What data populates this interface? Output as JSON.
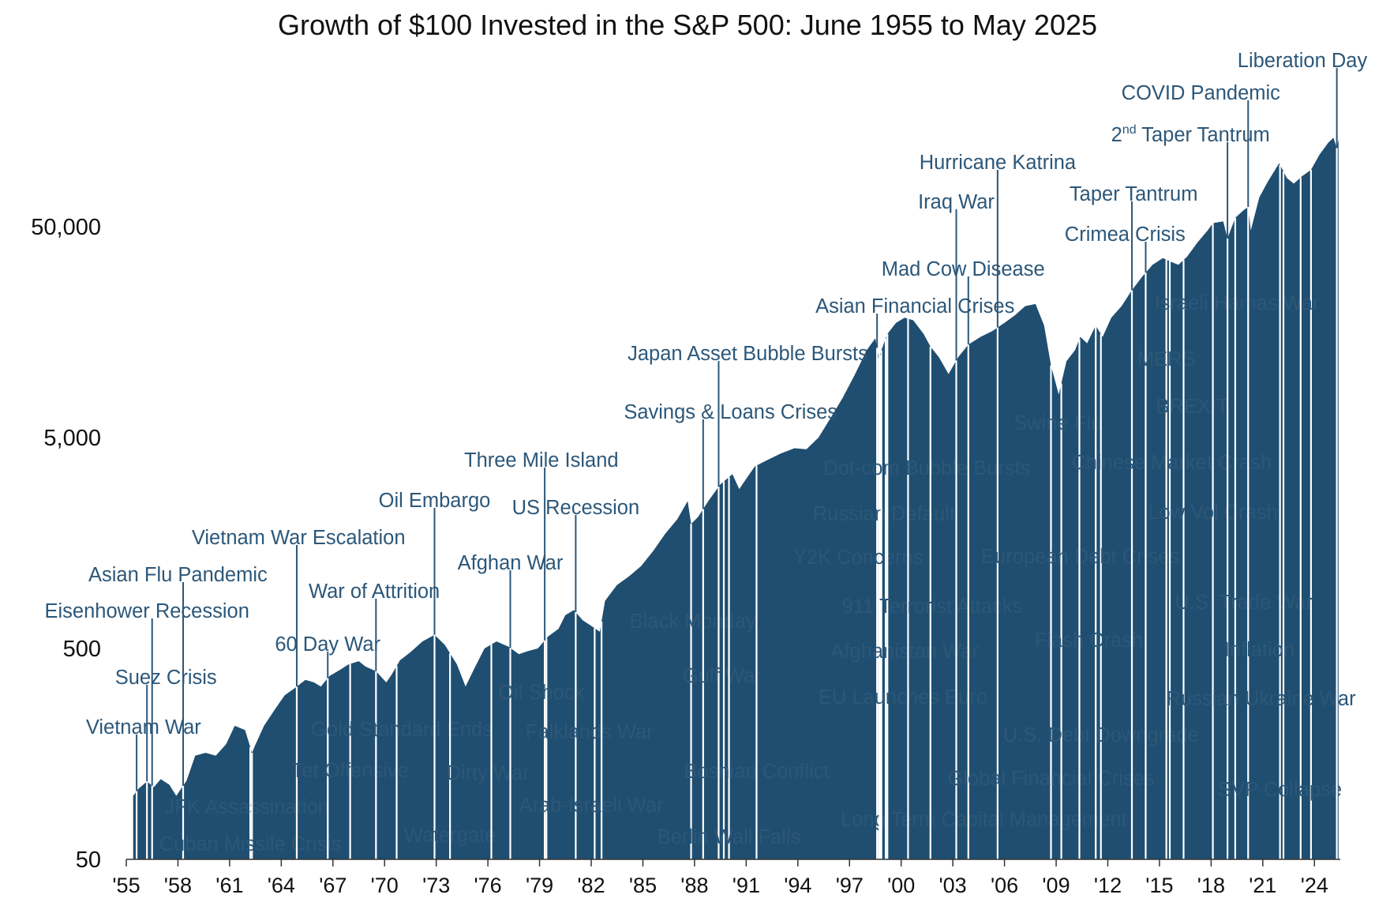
{
  "chart_data": {
    "type": "area",
    "title": "Growth of $100 Invested in the S&P 500: June 1955 to May 2025",
    "xlabel": "",
    "ylabel": "",
    "y_scale": "log",
    "ylim": [
      50,
      160000
    ],
    "xlim": [
      1955.0,
      2025.5
    ],
    "y_ticks": [
      50,
      500,
      5000,
      50000
    ],
    "y_tick_labels": [
      "50",
      "500",
      "5,000",
      "50,000"
    ],
    "x_ticks": [
      1955,
      1958,
      1961,
      1964,
      1967,
      1970,
      1973,
      1976,
      1979,
      1982,
      1985,
      1988,
      1991,
      1994,
      1997,
      2000,
      2003,
      2006,
      2009,
      2012,
      2015,
      2018,
      2021,
      2024
    ],
    "x_tick_labels": [
      "'55",
      "'58",
      "'61",
      "'64",
      "'67",
      "'70",
      "'73",
      "'76",
      "'79",
      "'82",
      "'85",
      "'88",
      "'91",
      "'94",
      "'97",
      "'00",
      "'03",
      "'06",
      "'09",
      "'12",
      "'15",
      "'18",
      "'21",
      "'24"
    ],
    "fill_color": "#1f4e70",
    "label_color": "#2c5779",
    "grid": false,
    "legend": "none",
    "series": [
      {
        "x": [
          1955.4,
          1955.7,
          1956.2,
          1956.6,
          1957.0,
          1957.5,
          1957.9,
          1958.5,
          1959.0,
          1959.6,
          1960.2,
          1960.8,
          1961.3,
          1961.9,
          1962.3,
          1962.5,
          1963.0,
          1963.6,
          1964.2,
          1964.8,
          1965.4,
          1965.9,
          1966.3,
          1966.8,
          1967.4,
          1967.9,
          1968.5,
          1968.9,
          1969.5,
          1970.1,
          1970.4,
          1970.9,
          1971.5,
          1972.2,
          1972.9,
          1973.5,
          1974.2,
          1974.7,
          1975.2,
          1975.8,
          1976.5,
          1977.2,
          1977.8,
          1978.3,
          1978.9,
          1979.5,
          1980.1,
          1980.5,
          1981.0,
          1981.5,
          1982.0,
          1982.5,
          1982.8,
          1983.5,
          1984.2,
          1984.9,
          1985.6,
          1986.3,
          1987.0,
          1987.6,
          1987.8,
          1988.2,
          1988.8,
          1989.5,
          1990.2,
          1990.6,
          1990.9,
          1991.5,
          1992.2,
          1993.0,
          1993.8,
          1994.5,
          1995.2,
          1995.9,
          1996.6,
          1997.3,
          1998.0,
          1998.5,
          1998.7,
          1999.2,
          1999.7,
          2000.2,
          2000.7,
          2001.3,
          2001.7,
          2002.2,
          2002.75,
          2003.3,
          2003.9,
          2004.6,
          2005.3,
          2006.0,
          2006.6,
          2007.2,
          2007.8,
          2008.3,
          2008.7,
          2009.15,
          2009.6,
          2010.1,
          2010.4,
          2010.8,
          2011.3,
          2011.7,
          2012.2,
          2012.8,
          2013.4,
          2014.0,
          2014.6,
          2015.2,
          2015.7,
          2016.1,
          2016.6,
          2017.2,
          2017.8,
          2018.1,
          2018.7,
          2018.95,
          2019.4,
          2019.9,
          2020.15,
          2020.3,
          2020.8,
          2021.3,
          2021.95,
          2022.4,
          2022.8,
          2023.3,
          2023.8,
          2024.3,
          2024.8,
          2025.1,
          2025.3,
          2025.4
        ],
        "values": [
          100,
          108,
          117,
          110,
          120,
          113,
          100,
          118,
          155,
          160,
          155,
          176,
          215,
          205,
          160,
          175,
          215,
          255,
          300,
          325,
          355,
          345,
          330,
          370,
          395,
          420,
          435,
          410,
          390,
          345,
          375,
          440,
          480,
          540,
          580,
          520,
          420,
          330,
          400,
          500,
          540,
          510,
          470,
          485,
          500,
          570,
          620,
          720,
          760,
          680,
          640,
          600,
          840,
          1000,
          1100,
          1230,
          1450,
          1750,
          2050,
          2500,
          1950,
          2100,
          2500,
          3000,
          3350,
          2850,
          3100,
          3650,
          3900,
          4200,
          4450,
          4400,
          5000,
          6200,
          7700,
          9900,
          13000,
          14800,
          12000,
          15500,
          17500,
          18500,
          18000,
          15500,
          13500,
          12000,
          10000,
          12000,
          13800,
          15000,
          16000,
          17500,
          19000,
          21000,
          21500,
          17000,
          11000,
          8000,
          11500,
          13000,
          15000,
          14000,
          17000,
          15000,
          18500,
          21000,
          25000,
          29000,
          33000,
          35500,
          34000,
          33000,
          36000,
          42000,
          48000,
          52000,
          53000,
          44000,
          55000,
          60000,
          62000,
          48000,
          69000,
          82000,
          100000,
          85000,
          80000,
          87000,
          93000,
          110000,
          125000,
          132000,
          118000,
          130000
        ]
      }
    ],
    "annotations": [
      {
        "label": "Vietnam War",
        "x": 1955.6,
        "y": 105
      },
      {
        "label": "Suez Crisis",
        "x": 1956.2,
        "y": 115
      },
      {
        "label": "Eisenhower Recession",
        "x": 1956.5,
        "y": 112
      },
      {
        "label": "Asian Flu Pandemic",
        "x": 1958.3,
        "y": 118
      },
      {
        "label": "JFK Assassination",
        "x": 1962.2,
        "y": 170
      },
      {
        "label": "Cuban Missile Crisis",
        "x": 1962.3,
        "y": 160
      },
      {
        "label": "Vietnam War Escalation",
        "x": 1964.9,
        "y": 325
      },
      {
        "label": "60 Day War",
        "x": 1966.7,
        "y": 345
      },
      {
        "label": "Tet Offensive",
        "x": 1968.0,
        "y": 400
      },
      {
        "label": "War of Attrition",
        "x": 1969.5,
        "y": 390
      },
      {
        "label": "Gold Standard Ends",
        "x": 1970.7,
        "y": 430
      },
      {
        "label": "Oil Embargo",
        "x": 1972.9,
        "y": 580
      },
      {
        "label": "Watergate",
        "x": 1973.8,
        "y": 480
      },
      {
        "label": "Dirty War",
        "x": 1976.2,
        "y": 540
      },
      {
        "label": "Afghan War",
        "x": 1977.3,
        "y": 510
      },
      {
        "label": "Three Mile Island",
        "x": 1979.3,
        "y": 560
      },
      {
        "label": "Oil Shock",
        "x": 1979.4,
        "y": 565
      },
      {
        "label": "US Recession",
        "x": 1981.1,
        "y": 760
      },
      {
        "label": "Falklands War",
        "x": 1982.2,
        "y": 620
      },
      {
        "label": "Arab-Israeli War",
        "x": 1982.6,
        "y": 650
      },
      {
        "label": "Black Monday",
        "x": 1987.8,
        "y": 1950
      },
      {
        "label": "Savings & Loans Crises",
        "x": 1988.5,
        "y": 2200
      },
      {
        "label": "Japan Asset Bubble Bursts",
        "x": 1989.4,
        "y": 2900
      },
      {
        "label": "Gulf War",
        "x": 1989.7,
        "y": 3000
      },
      {
        "label": "Berlin Wall Falls",
        "x": 1990.0,
        "y": 3100
      },
      {
        "label": "Bosnian Conflict",
        "x": 1991.6,
        "y": 3700
      },
      {
        "label": "Asian Financial Crises",
        "x": 1998.6,
        "y": 14500
      },
      {
        "label": "Long Term Capital Management",
        "x": 1998.7,
        "y": 12500
      },
      {
        "label": "Russian Default",
        "x": 1998.75,
        "y": 13500
      },
      {
        "label": "Y2K Concerns",
        "x": 1998.85,
        "y": 14000
      },
      {
        "label": "Afghanistan War",
        "x": 1999.1,
        "y": 15000
      },
      {
        "label": "EU Launches Euro",
        "x": 1999.2,
        "y": 15300
      },
      {
        "label": "Dot-com Bubble Bursts",
        "x": 2000.4,
        "y": 18500
      },
      {
        "label": "911 Terrorist Attacks",
        "x": 2001.7,
        "y": 13500
      },
      {
        "label": "Iraq War",
        "x": 2003.2,
        "y": 12000
      },
      {
        "label": "Mad Cow Disease",
        "x": 2003.9,
        "y": 13800
      },
      {
        "label": "Hurricane Katrina",
        "x": 2005.6,
        "y": 16500
      },
      {
        "label": "Global Financial Crises",
        "x": 2008.7,
        "y": 11000
      },
      {
        "label": "Swine Flu",
        "x": 2009.3,
        "y": 11000
      },
      {
        "label": "U.S. Debt Downgrade",
        "x": 2011.6,
        "y": 15000
      },
      {
        "label": "European Debt Crises",
        "x": 2011.3,
        "y": 17000
      },
      {
        "label": "Flash Crash",
        "x": 2010.35,
        "y": 15000
      },
      {
        "label": "Taper Tantrum",
        "x": 2013.4,
        "y": 25000
      },
      {
        "label": "Crimea Crisis",
        "x": 2014.2,
        "y": 29000
      },
      {
        "label": "Chinese Market Crash",
        "x": 2015.6,
        "y": 34000
      },
      {
        "label": "MERS",
        "x": 2015.4,
        "y": 35000
      },
      {
        "label": "BREXIT",
        "x": 2016.4,
        "y": 34000
      },
      {
        "label": "Israeli Hamas War",
        "x": 2023.8,
        "y": 93000
      },
      {
        "label": "Low Vol Crash",
        "x": 2018.1,
        "y": 52000
      },
      {
        "label": "2nd Taper Tantrum",
        "x": 2018.95,
        "y": 44000
      },
      {
        "label": "U.S. Trade War",
        "x": 2019.4,
        "y": 55000
      },
      {
        "label": "COVID Pandemic",
        "x": 2020.15,
        "y": 48000
      },
      {
        "label": "Inflation",
        "x": 2022.0,
        "y": 92000
      },
      {
        "label": "Russian Ukraine War",
        "x": 2022.2,
        "y": 88000
      },
      {
        "label": "SVP Collapse",
        "x": 2023.2,
        "y": 87000
      },
      {
        "label": "Liberation Day",
        "x": 2025.3,
        "y": 118000
      }
    ]
  }
}
